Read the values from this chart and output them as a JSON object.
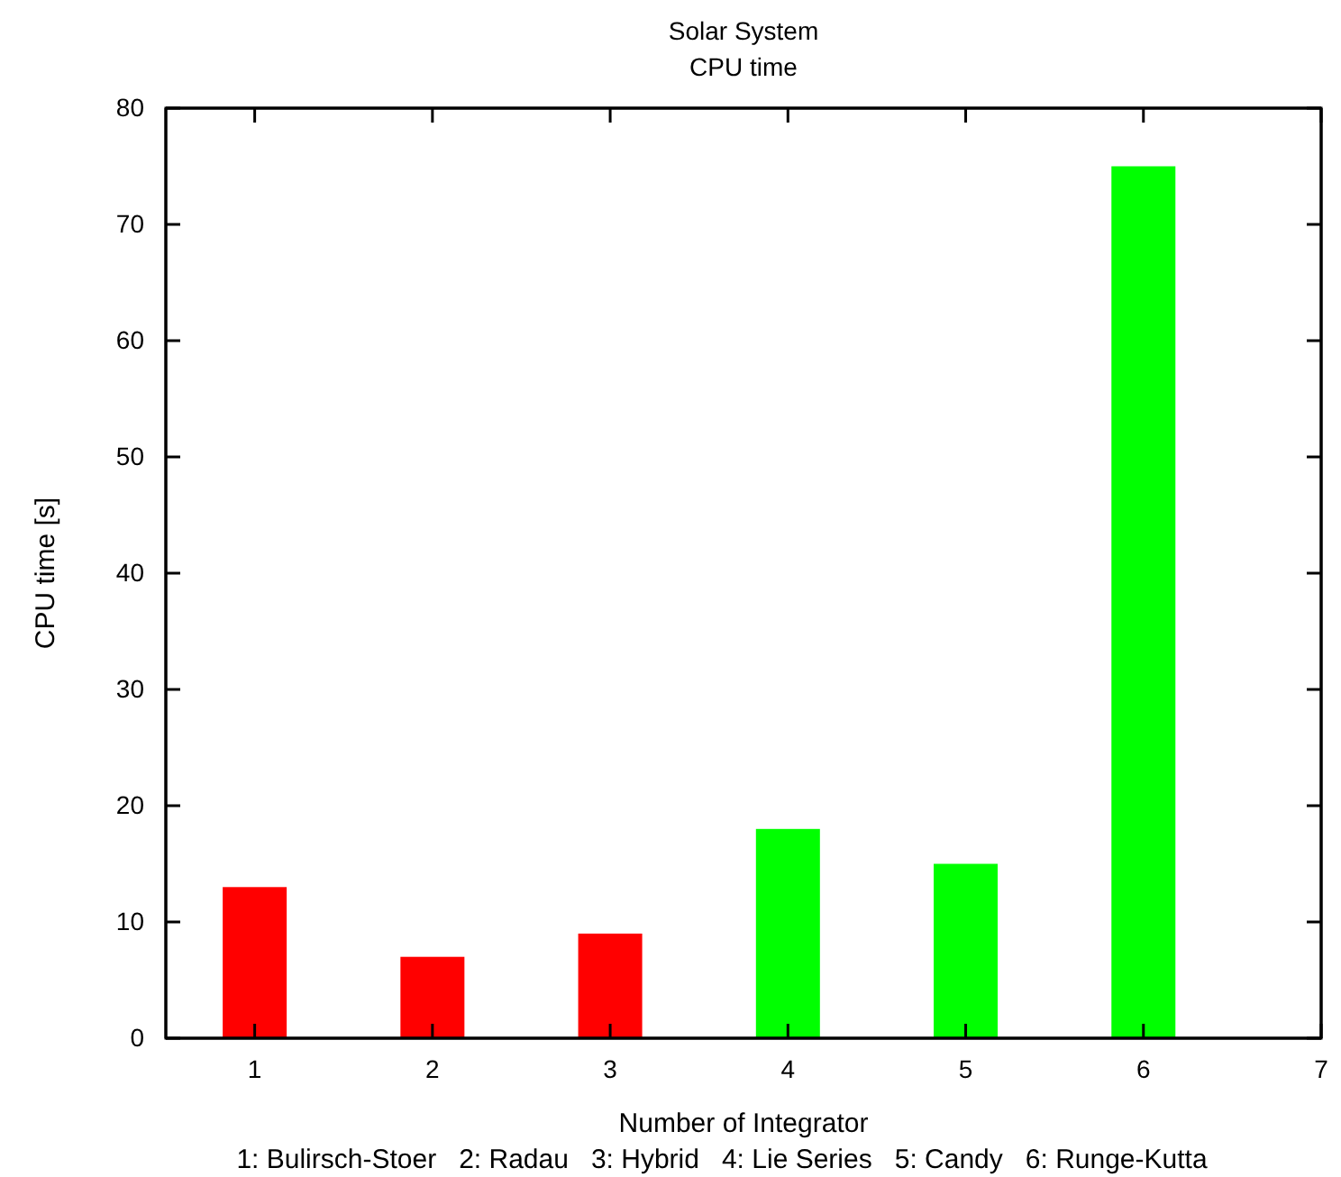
{
  "chart_data": {
    "type": "bar",
    "title": "Solar System",
    "subtitle": "CPU time",
    "xlabel": "Number of Integrator",
    "ylabel": "CPU time [s]",
    "xlim": [
      0.5,
      7
    ],
    "xticks": [
      1,
      2,
      3,
      4,
      5,
      6,
      7
    ],
    "ylim": [
      0,
      80
    ],
    "yticks": [
      0,
      10,
      20,
      30,
      40,
      50,
      60,
      70,
      80
    ],
    "grid": false,
    "series": [
      {
        "color": "#ff0000",
        "x": [
          1,
          2,
          3
        ],
        "values": [
          13,
          7,
          9
        ]
      },
      {
        "color": "#00ff00",
        "x": [
          4,
          5,
          6
        ],
        "values": [
          18,
          15,
          75
        ]
      }
    ],
    "annotations": [
      "1: Bulirsch-Stoer   2: Radau   3: Hybrid   4: Lie Series   5: Candy   6: Runge-Kutta"
    ]
  }
}
